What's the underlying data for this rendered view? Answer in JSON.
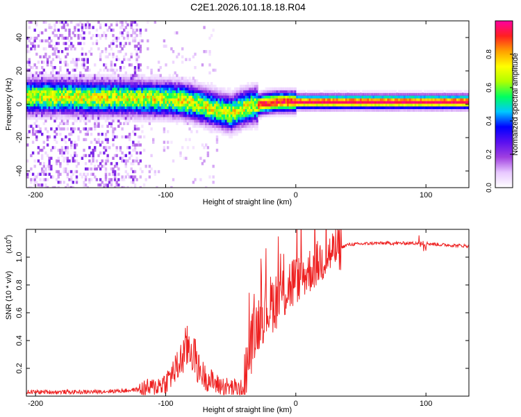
{
  "title": "C2E1.2026.101.18.18.R04",
  "colors": {
    "snr_line": "#ee2020",
    "colormap": [
      "#ffffff",
      "#e8c8ff",
      "#a040e0",
      "#5a10f0",
      "#0000ff",
      "#00c8ff",
      "#00ff60",
      "#b0ff00",
      "#ffff00",
      "#ffa000",
      "#ff2020",
      "#ff00a0"
    ]
  },
  "chart_data": [
    {
      "type": "heatmap",
      "xlabel": "Height of straight line (km)",
      "ylabel": "Frequency (Hz)",
      "xlim": [
        -207,
        133
      ],
      "ylim": [
        -50,
        50
      ],
      "xticks": [
        -200,
        -100,
        0,
        100
      ],
      "yticks": [
        -40,
        -20,
        0,
        20,
        40
      ],
      "ridge": {
        "description": "dominant frequency trace",
        "x": [
          -205,
          -180,
          -160,
          -140,
          -120,
          -100,
          -90,
          -80,
          -70,
          -60,
          -50,
          -45,
          -40,
          -35,
          -30,
          -25,
          -20,
          -15,
          -10,
          -5,
          0,
          20,
          60,
          100,
          133
        ],
        "y": [
          4.5,
          4.5,
          4.0,
          4.0,
          3.5,
          3.0,
          2.5,
          1.0,
          -1.5,
          -3.5,
          -5.5,
          -3.5,
          -2.0,
          -1.0,
          -0.5,
          0.5,
          1.0,
          1.5,
          1.5,
          1.5,
          1.5,
          1.5,
          1.5,
          1.5,
          1.5
        ]
      },
      "colorbar": {
        "label": "Normalized spectral amplitude",
        "range": [
          0,
          1
        ],
        "ticks": [
          0.0,
          0.2,
          0.4,
          0.6,
          0.8
        ]
      }
    },
    {
      "type": "line",
      "series_name": "SNR",
      "xlabel": "Height of straight line (km)",
      "ylabel": "SNR (10 * v/v)",
      "yscale_label": "(x10",
      "yscale_exponent": "4",
      "xlim": [
        -207,
        133
      ],
      "ylim": [
        0,
        1.2
      ],
      "xticks": [
        -200,
        -100,
        0,
        100
      ],
      "yticks": [
        0.2,
        0.4,
        0.6,
        0.8,
        1.0
      ],
      "envelope": {
        "x": [
          -207,
          -160,
          -130,
          -110,
          -100,
          -95,
          -90,
          -85,
          -82,
          -78,
          -75,
          -70,
          -60,
          -50,
          -40,
          -38,
          -35,
          -30,
          -28,
          -25,
          -20,
          -15,
          -10,
          -5,
          0,
          5,
          10,
          20,
          30,
          40,
          60,
          80,
          95,
          100,
          110,
          133
        ],
        "y": [
          0.03,
          0.03,
          0.04,
          0.06,
          0.1,
          0.16,
          0.22,
          0.33,
          0.36,
          0.3,
          0.2,
          0.14,
          0.08,
          0.06,
          0.05,
          0.2,
          0.35,
          0.5,
          0.55,
          0.6,
          0.65,
          0.7,
          0.74,
          0.8,
          0.83,
          0.86,
          0.9,
          0.98,
          1.05,
          1.09,
          1.1,
          1.1,
          1.1,
          1.1,
          1.09,
          1.08
        ]
      }
    }
  ]
}
